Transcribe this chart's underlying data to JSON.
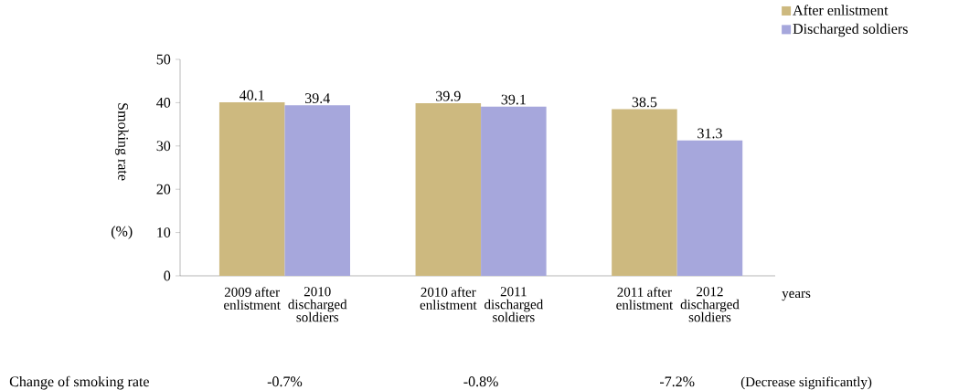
{
  "chart_data": {
    "type": "bar",
    "categories": [
      "2009 after enlistment",
      "2010 discharged soldiers",
      "2010 after enlistment",
      "2011 discharged soldiers",
      "2011 after enlistment",
      "2012 discharged soldiers"
    ],
    "series": [
      {
        "name": "After enlistment",
        "color": "#cdb97f",
        "values": [
          40.1,
          null,
          39.9,
          null,
          38.5,
          null
        ]
      },
      {
        "name": "Discharged soldiers",
        "color": "#a6a7dc",
        "values": [
          null,
          39.4,
          null,
          39.1,
          null,
          31.3
        ]
      }
    ],
    "xlabel": "years",
    "ylabel": "Smoking rate",
    "ylim": [
      0,
      50
    ],
    "yticks": [
      0,
      10,
      20,
      30,
      40,
      50
    ],
    "data_labels": true,
    "legend": "top right",
    "annotations": [
      "(%)",
      "Change of smoking rate",
      "-0.7%",
      "-0.8%",
      "-7.2%",
      "(Decrease significantly)"
    ]
  }
}
